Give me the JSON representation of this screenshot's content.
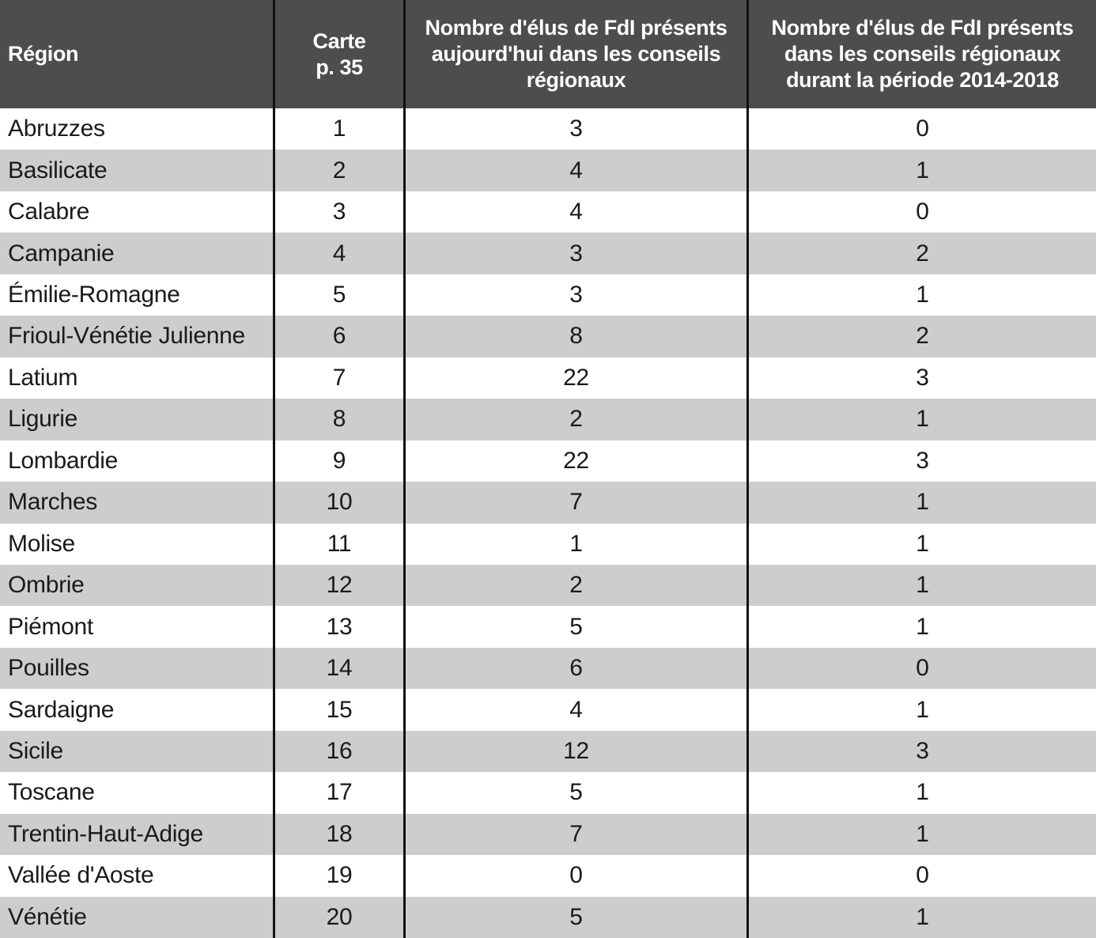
{
  "table": {
    "columns": {
      "region": "Région",
      "carte": "Carte\np. 35",
      "now": "Nombre d'élus de FdI présents aujourd'hui dans les conseils régionaux",
      "past": "Nombre d'élus de FdI présents dans les conseils régionaux durant la période 2014-2018"
    },
    "rows": [
      {
        "region": "Abruzzes",
        "carte": "1",
        "now": "3",
        "past": "0"
      },
      {
        "region": "Basilicate",
        "carte": "2",
        "now": "4",
        "past": "1"
      },
      {
        "region": "Calabre",
        "carte": "3",
        "now": "4",
        "past": "0"
      },
      {
        "region": "Campanie",
        "carte": "4",
        "now": "3",
        "past": "2"
      },
      {
        "region": "Émilie-Romagne",
        "carte": "5",
        "now": "3",
        "past": "1"
      },
      {
        "region": "Frioul-Vénétie Julienne",
        "carte": "6",
        "now": "8",
        "past": "2"
      },
      {
        "region": "Latium",
        "carte": "7",
        "now": "22",
        "past": "3"
      },
      {
        "region": "Ligurie",
        "carte": "8",
        "now": "2",
        "past": "1"
      },
      {
        "region": "Lombardie",
        "carte": "9",
        "now": "22",
        "past": "3"
      },
      {
        "region": "Marches",
        "carte": "10",
        "now": "7",
        "past": "1"
      },
      {
        "region": "Molise",
        "carte": "11",
        "now": "1",
        "past": "1"
      },
      {
        "region": "Ombrie",
        "carte": "12",
        "now": "2",
        "past": "1"
      },
      {
        "region": "Piémont",
        "carte": "13",
        "now": "5",
        "past": "1"
      },
      {
        "region": "Pouilles",
        "carte": "14",
        "now": "6",
        "past": "0"
      },
      {
        "region": "Sardaigne",
        "carte": "15",
        "now": "4",
        "past": "1"
      },
      {
        "region": "Sicile",
        "carte": "16",
        "now": "12",
        "past": "3"
      },
      {
        "region": "Toscane",
        "carte": "17",
        "now": "5",
        "past": "1"
      },
      {
        "region": "Trentin-Haut-Adige",
        "carte": "18",
        "now": "7",
        "past": "1"
      },
      {
        "region": "Vallée d'Aoste",
        "carte": "19",
        "now": "0",
        "past": "0"
      },
      {
        "region": "Vénétie",
        "carte": "20",
        "now": "5",
        "past": "1"
      }
    ]
  },
  "colors": {
    "header_bg": "#4d4d4d",
    "header_text": "#ffffff",
    "row_alt_bg": "#cdcdcd",
    "row_bg": "#ffffff",
    "rule": "#111111",
    "body_text": "#1a1a1a"
  }
}
